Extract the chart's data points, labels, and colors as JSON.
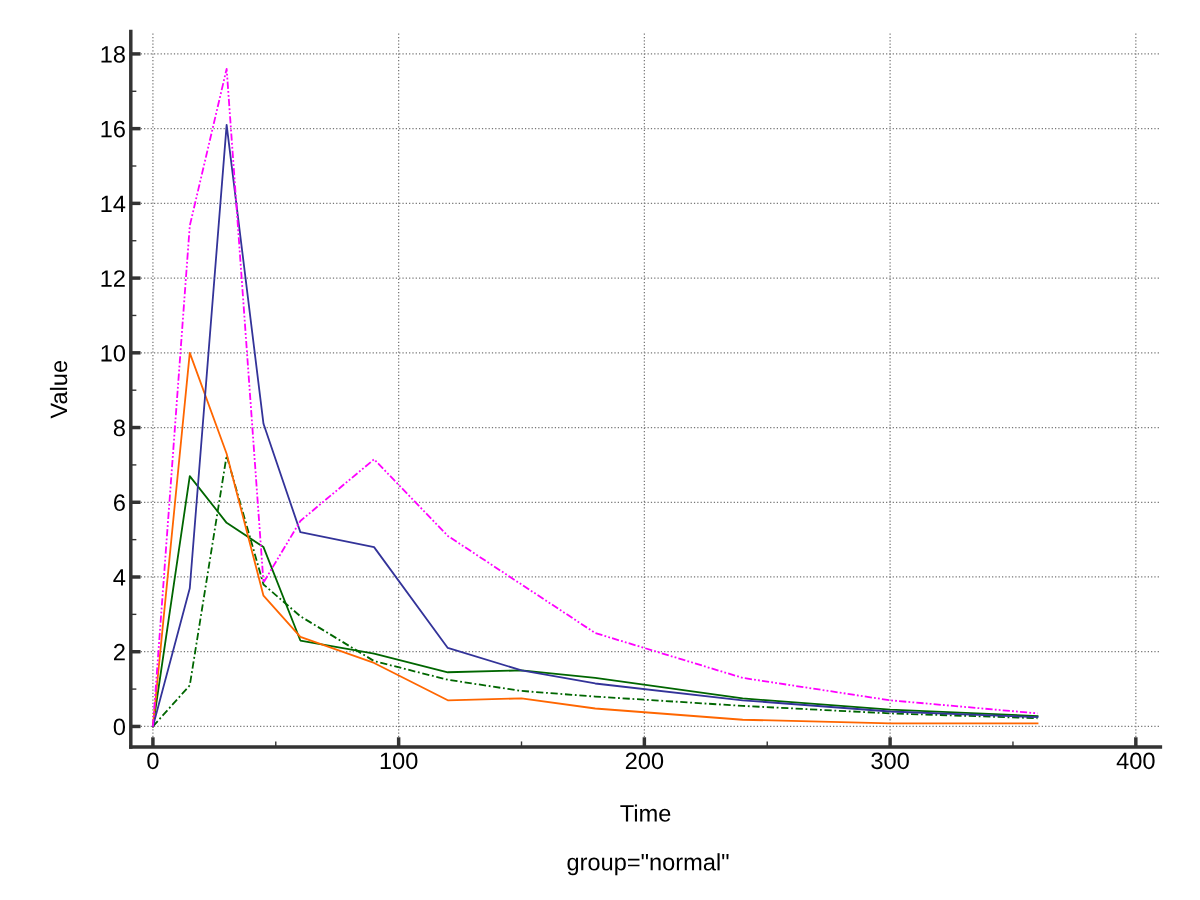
{
  "chart_data": {
    "type": "line",
    "xlabel": "Time",
    "ylabel": "Value",
    "subtitle": "group=\"normal\"",
    "x": [
      0,
      15,
      30,
      45,
      60,
      90,
      120,
      150,
      180,
      240,
      300,
      360
    ],
    "series": [
      {
        "color": "#ff00ff",
        "line_style": "dashdotdot",
        "values": [
          0,
          13.4,
          17.6,
          3.85,
          5.5,
          7.15,
          5.1,
          3.8,
          2.5,
          1.3,
          0.7,
          0.35
        ]
      },
      {
        "color": "#333399",
        "line_style": "solid",
        "values": [
          0,
          3.7,
          16.1,
          8.1,
          5.2,
          4.8,
          2.1,
          1.5,
          1.15,
          0.7,
          0.4,
          0.25
        ]
      },
      {
        "color": "#ff6600",
        "line_style": "solid",
        "values": [
          0,
          10.0,
          7.3,
          3.5,
          2.4,
          1.7,
          0.7,
          0.75,
          0.48,
          0.18,
          0.08,
          0.08
        ]
      },
      {
        "color": "#006600",
        "line_style": "solid",
        "values": [
          0,
          6.7,
          5.45,
          4.8,
          2.3,
          1.95,
          1.45,
          1.5,
          1.3,
          0.75,
          0.45,
          0.28
        ]
      },
      {
        "color": "#006600",
        "line_style": "dashdot",
        "values": [
          0,
          1.1,
          7.25,
          3.8,
          2.95,
          1.75,
          1.25,
          0.95,
          0.8,
          0.55,
          0.35,
          0.22
        ]
      }
    ],
    "xlim": [
      -9,
      410
    ],
    "ylim": [
      -0.55,
      18.6
    ],
    "xticks": [
      0,
      100,
      200,
      300,
      400
    ],
    "yticks": [
      0,
      2,
      4,
      6,
      8,
      10,
      12,
      14,
      16,
      18
    ],
    "grid": true,
    "legend": false,
    "marker": "none"
  }
}
